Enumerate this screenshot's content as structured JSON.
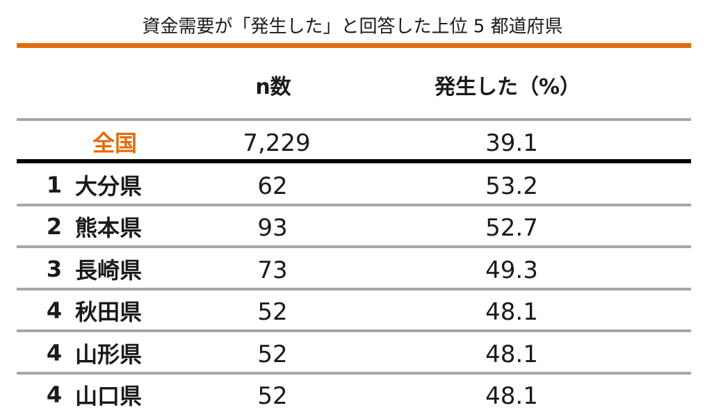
{
  "title": "資金需要が「発生した」と回答した上位 5 都道府県",
  "table": {
    "headers": [
      "n数",
      "発生した（%）"
    ],
    "national": {
      "label": "全国",
      "n": "7,229",
      "pct": "39.1"
    },
    "rows": [
      {
        "rank": "1",
        "pref": "大分県",
        "n": "62",
        "pct": "53.2"
      },
      {
        "rank": "2",
        "pref": "熊本県",
        "n": "93",
        "pct": "52.7"
      },
      {
        "rank": "3",
        "pref": "長崎県",
        "n": "73",
        "pct": "49.3"
      },
      {
        "rank": "4",
        "pref": "秋田県",
        "n": "52",
        "pct": "48.1"
      },
      {
        "rank": "4",
        "pref": "山形県",
        "n": "52",
        "pct": "48.1"
      },
      {
        "rank": "4",
        "pref": "山口県",
        "n": "52",
        "pct": "48.1"
      }
    ]
  }
}
